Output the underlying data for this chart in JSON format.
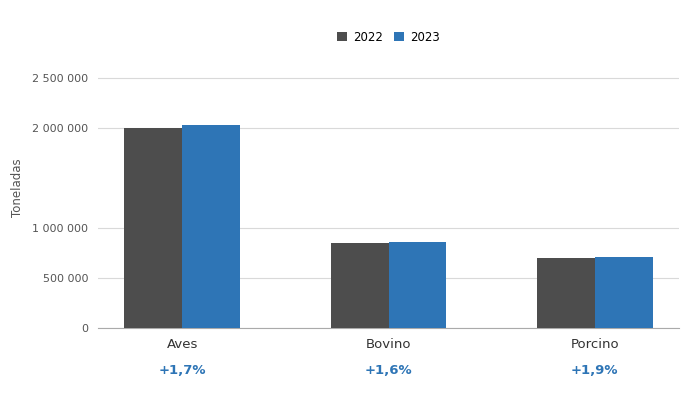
{
  "categories": [
    "Aves",
    "Bovino",
    "Porcino"
  ],
  "values_2022": [
    2000000,
    850000,
    700000
  ],
  "values_2023": [
    2034000,
    863600,
    713300
  ],
  "pct_labels": [
    "+1,7%",
    "+1,6%",
    "+1,9%"
  ],
  "color_2022": "#4d4d4d",
  "color_2023": "#2e75b6",
  "pct_color": "#2e75b6",
  "ylabel": "Toneladas",
  "legend_labels": [
    "2022",
    "2023"
  ],
  "yticks": [
    0,
    500000,
    1000000,
    2000000,
    2500000
  ],
  "ytick_labels": [
    "0",
    "500 000",
    "1 000 000",
    "2 000 000",
    "2 500 000"
  ],
  "ylim": [
    0,
    2800000
  ],
  "bar_width": 0.28,
  "background_color": "#ffffff",
  "grid_color": "#d9d9d9"
}
